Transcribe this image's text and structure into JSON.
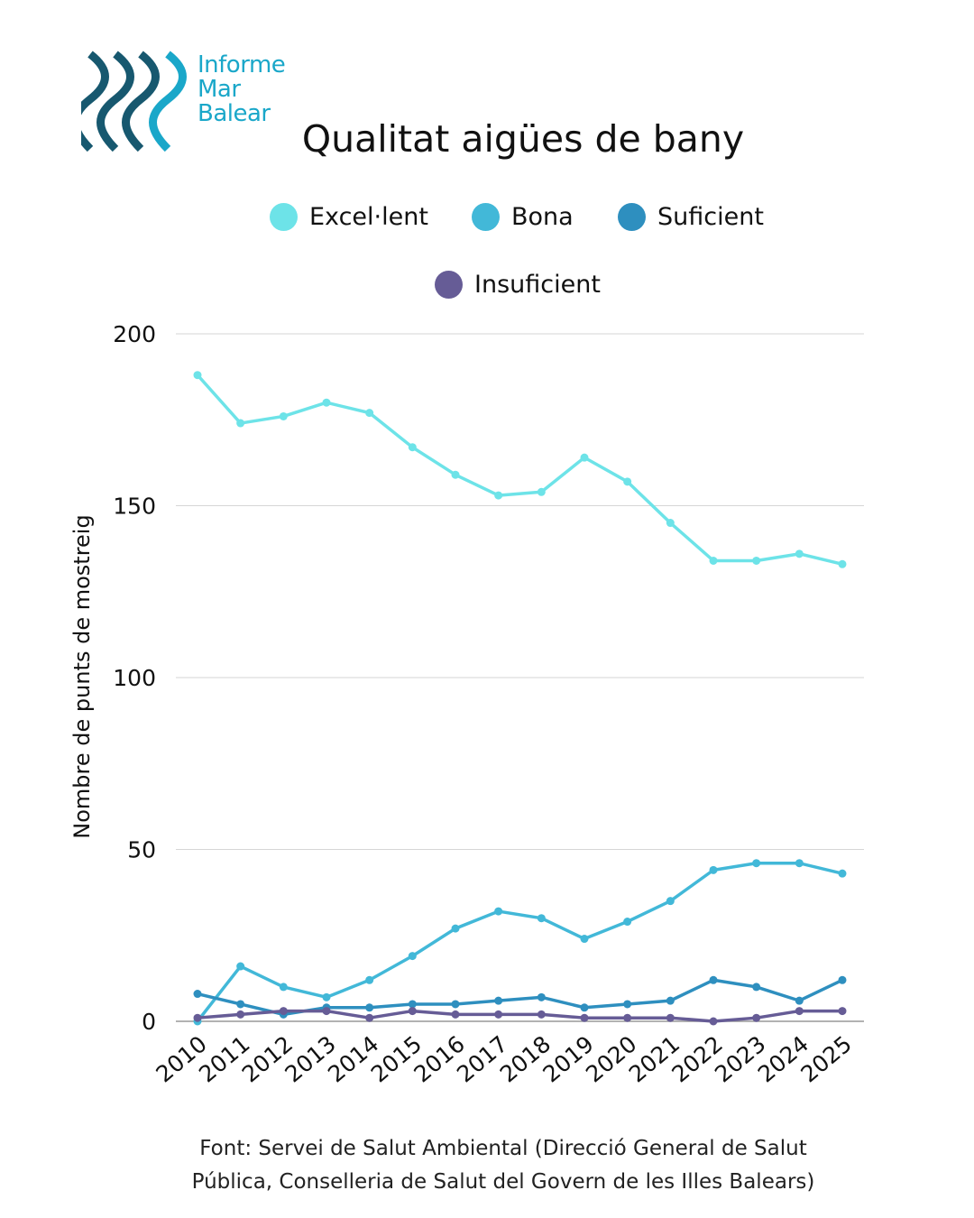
{
  "logo": {
    "lines": [
      "Informe",
      "Mar",
      "Balear"
    ],
    "dark_color": "#17586f",
    "light_color": "#1aa7c9"
  },
  "source": {
    "line1": "Font: Servei de Salut Ambiental (Direcció General de Salut",
    "line2": "Pública, Conselleria de Salut del Govern de les Illes Balears)"
  },
  "chart_data": {
    "type": "line",
    "title": "Qualitat aigües de bany",
    "xlabel": "",
    "ylabel": "Nombre de punts de mostreig",
    "ylim": [
      0,
      200
    ],
    "yticks": [
      0,
      50,
      100,
      150,
      200
    ],
    "grid": true,
    "legend_placement": "top",
    "x": [
      "2010",
      "2011",
      "2012",
      "2013",
      "2014",
      "2015",
      "2016",
      "2017",
      "2018",
      "2019",
      "2020",
      "2021",
      "2022",
      "2023",
      "2024",
      "2025"
    ],
    "series": [
      {
        "name": "Excel·lent",
        "color": "#6de3e8",
        "values": [
          188,
          174,
          176,
          180,
          177,
          167,
          159,
          153,
          154,
          164,
          157,
          145,
          134,
          134,
          136,
          133
        ]
      },
      {
        "name": "Bona",
        "color": "#42b8d8",
        "values": [
          0,
          16,
          10,
          7,
          12,
          19,
          27,
          32,
          30,
          24,
          29,
          35,
          44,
          46,
          46,
          43
        ]
      },
      {
        "name": "Suficient",
        "color": "#2e8fbf",
        "values": [
          8,
          5,
          2,
          4,
          4,
          5,
          5,
          6,
          7,
          4,
          5,
          6,
          12,
          10,
          6,
          12
        ]
      },
      {
        "name": "Insuficient",
        "color": "#665c96",
        "values": [
          1,
          2,
          3,
          3,
          1,
          3,
          2,
          2,
          2,
          1,
          1,
          1,
          0,
          1,
          3,
          3
        ]
      }
    ]
  }
}
